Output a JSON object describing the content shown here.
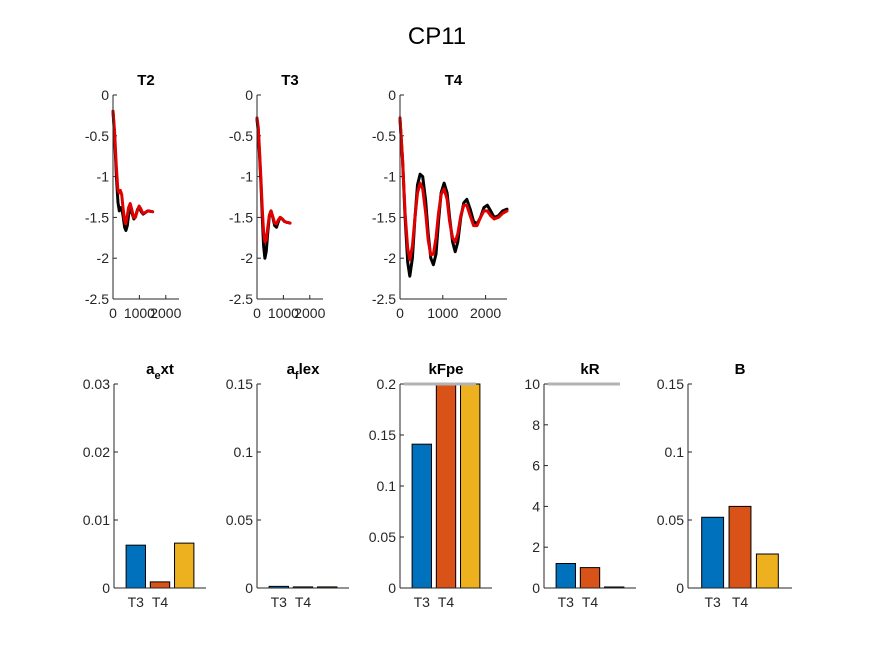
{
  "figure": {
    "title": "CP11"
  },
  "colors": {
    "measured": "#000000",
    "model": "#e00000",
    "bar1": "#0072bd",
    "bar2": "#d95319",
    "bar3": "#edb120",
    "limit": "#b3b3b3"
  },
  "chart_data": [
    {
      "type": "line",
      "title": "T2",
      "xlim": [
        0,
        2500
      ],
      "ylim": [
        -2.5,
        0
      ],
      "xticks": [
        0,
        1000,
        2000
      ],
      "xtick_labels": [
        "0",
        "1000",
        "2000"
      ],
      "yticks": [
        0,
        -0.5,
        -1,
        -1.5,
        -2,
        -2.5
      ],
      "ytick_labels": [
        "0",
        "-0.5",
        "-1",
        "-1.5",
        "-2",
        "-2.5"
      ],
      "series": [
        {
          "values": [
            [
              0,
              -0.2
            ],
            [
              60,
              -0.5
            ],
            [
              130,
              -1.0
            ],
            [
              190,
              -1.32
            ],
            [
              240,
              -1.42
            ],
            [
              290,
              -1.38
            ],
            [
              340,
              -1.4
            ],
            [
              390,
              -1.5
            ],
            [
              440,
              -1.62
            ],
            [
              490,
              -1.66
            ],
            [
              540,
              -1.6
            ],
            [
              600,
              -1.45
            ],
            [
              660,
              -1.38
            ],
            [
              720,
              -1.45
            ],
            [
              790,
              -1.52
            ],
            [
              860,
              -1.48
            ],
            [
              930,
              -1.4
            ],
            [
              1000,
              -1.38
            ],
            [
              1070,
              -1.43
            ],
            [
              1140,
              -1.46
            ],
            [
              1230,
              -1.44
            ],
            [
              1320,
              -1.42
            ],
            [
              1500,
              -1.43
            ]
          ]
        },
        {
          "values": [
            [
              0,
              -0.2
            ],
            [
              60,
              -0.45
            ],
            [
              120,
              -0.85
            ],
            [
              180,
              -1.15
            ],
            [
              230,
              -1.2
            ],
            [
              280,
              -1.17
            ],
            [
              330,
              -1.22
            ],
            [
              380,
              -1.38
            ],
            [
              430,
              -1.52
            ],
            [
              480,
              -1.58
            ],
            [
              530,
              -1.5
            ],
            [
              590,
              -1.38
            ],
            [
              650,
              -1.33
            ],
            [
              710,
              -1.4
            ],
            [
              780,
              -1.5
            ],
            [
              850,
              -1.5
            ],
            [
              920,
              -1.42
            ],
            [
              990,
              -1.36
            ],
            [
              1060,
              -1.4
            ],
            [
              1130,
              -1.45
            ],
            [
              1220,
              -1.44
            ],
            [
              1320,
              -1.42
            ],
            [
              1500,
              -1.43
            ]
          ]
        }
      ]
    },
    {
      "type": "line",
      "title": "T3",
      "xlim": [
        0,
        2500
      ],
      "ylim": [
        -2.5,
        0
      ],
      "xticks": [
        0,
        1000,
        2000
      ],
      "xtick_labels": [
        "0",
        "1000",
        "2000"
      ],
      "yticks": [
        0,
        -0.5,
        -1,
        -1.5,
        -2,
        -2.5
      ],
      "ytick_labels": [
        "0",
        "-0.5",
        "-1",
        "-1.5",
        "-2",
        "-2.5"
      ],
      "series": [
        {
          "values": [
            [
              0,
              -0.3
            ],
            [
              50,
              -0.45
            ],
            [
              100,
              -0.75
            ],
            [
              150,
              -1.1
            ],
            [
              200,
              -1.5
            ],
            [
              250,
              -1.85
            ],
            [
              300,
              -2.0
            ],
            [
              350,
              -1.92
            ],
            [
              410,
              -1.68
            ],
            [
              470,
              -1.48
            ],
            [
              530,
              -1.42
            ],
            [
              600,
              -1.5
            ],
            [
              670,
              -1.6
            ],
            [
              740,
              -1.62
            ],
            [
              810,
              -1.55
            ],
            [
              880,
              -1.5
            ],
            [
              960,
              -1.52
            ],
            [
              1040,
              -1.55
            ],
            [
              1130,
              -1.56
            ],
            [
              1250,
              -1.57
            ]
          ]
        },
        {
          "values": [
            [
              0,
              -0.28
            ],
            [
              50,
              -0.4
            ],
            [
              100,
              -0.7
            ],
            [
              150,
              -1.05
            ],
            [
              200,
              -1.4
            ],
            [
              250,
              -1.68
            ],
            [
              300,
              -1.8
            ],
            [
              350,
              -1.78
            ],
            [
              410,
              -1.62
            ],
            [
              470,
              -1.47
            ],
            [
              530,
              -1.42
            ],
            [
              600,
              -1.49
            ],
            [
              670,
              -1.57
            ],
            [
              740,
              -1.58
            ],
            [
              810,
              -1.53
            ],
            [
              880,
              -1.5
            ],
            [
              960,
              -1.52
            ],
            [
              1040,
              -1.55
            ],
            [
              1130,
              -1.56
            ],
            [
              1250,
              -1.57
            ]
          ]
        }
      ]
    },
    {
      "type": "line",
      "title": "T4",
      "xlim": [
        0,
        2500
      ],
      "ylim": [
        -2.5,
        0
      ],
      "xticks": [
        0,
        1000,
        2000
      ],
      "xtick_labels": [
        "0",
        "1000",
        "2000"
      ],
      "yticks": [
        0,
        -0.5,
        -1,
        -1.5,
        -2,
        -2.5
      ],
      "ytick_labels": [
        "0",
        "-0.5",
        "-1",
        "-1.5",
        "-2",
        "-2.5"
      ],
      "series": [
        {
          "values": [
            [
              0,
              -0.3
            ],
            [
              60,
              -0.8
            ],
            [
              120,
              -1.5
            ],
            [
              180,
              -2.05
            ],
            [
              230,
              -2.22
            ],
            [
              290,
              -2.0
            ],
            [
              350,
              -1.5
            ],
            [
              410,
              -1.1
            ],
            [
              470,
              -0.97
            ],
            [
              530,
              -1.0
            ],
            [
              600,
              -1.3
            ],
            [
              660,
              -1.7
            ],
            [
              720,
              -2.0
            ],
            [
              780,
              -2.08
            ],
            [
              840,
              -1.95
            ],
            [
              900,
              -1.55
            ],
            [
              960,
              -1.2
            ],
            [
              1030,
              -1.08
            ],
            [
              1100,
              -1.2
            ],
            [
              1160,
              -1.5
            ],
            [
              1230,
              -1.8
            ],
            [
              1290,
              -1.92
            ],
            [
              1350,
              -1.8
            ],
            [
              1420,
              -1.5
            ],
            [
              1490,
              -1.32
            ],
            [
              1560,
              -1.28
            ],
            [
              1640,
              -1.4
            ],
            [
              1720,
              -1.55
            ],
            [
              1800,
              -1.58
            ],
            [
              1880,
              -1.5
            ],
            [
              1960,
              -1.38
            ],
            [
              2040,
              -1.35
            ],
            [
              2120,
              -1.42
            ],
            [
              2200,
              -1.5
            ],
            [
              2300,
              -1.48
            ],
            [
              2400,
              -1.42
            ],
            [
              2500,
              -1.4
            ]
          ]
        },
        {
          "values": [
            [
              0,
              -0.28
            ],
            [
              60,
              -0.8
            ],
            [
              120,
              -1.45
            ],
            [
              180,
              -1.88
            ],
            [
              230,
              -2.02
            ],
            [
              290,
              -1.85
            ],
            [
              350,
              -1.5
            ],
            [
              410,
              -1.2
            ],
            [
              470,
              -1.08
            ],
            [
              530,
              -1.15
            ],
            [
              600,
              -1.45
            ],
            [
              660,
              -1.78
            ],
            [
              720,
              -1.96
            ],
            [
              780,
              -1.95
            ],
            [
              840,
              -1.75
            ],
            [
              900,
              -1.45
            ],
            [
              960,
              -1.22
            ],
            [
              1030,
              -1.15
            ],
            [
              1100,
              -1.28
            ],
            [
              1160,
              -1.55
            ],
            [
              1230,
              -1.75
            ],
            [
              1290,
              -1.8
            ],
            [
              1350,
              -1.7
            ],
            [
              1420,
              -1.48
            ],
            [
              1490,
              -1.35
            ],
            [
              1560,
              -1.35
            ],
            [
              1640,
              -1.48
            ],
            [
              1720,
              -1.6
            ],
            [
              1800,
              -1.6
            ],
            [
              1880,
              -1.5
            ],
            [
              1960,
              -1.42
            ],
            [
              2040,
              -1.42
            ],
            [
              2120,
              -1.48
            ],
            [
              2200,
              -1.52
            ],
            [
              2300,
              -1.5
            ],
            [
              2400,
              -1.45
            ],
            [
              2500,
              -1.42
            ]
          ]
        }
      ]
    },
    {
      "type": "bar",
      "title": "a",
      "title_sub": "e",
      "title_rest": "xt",
      "categories": [
        "T3",
        "T4",
        ""
      ],
      "xtick_labels": [
        "T3",
        "T4"
      ],
      "values": [
        0.0063,
        0.0009,
        0.0066
      ],
      "ylim": [
        0,
        0.03
      ],
      "yticks": [
        0,
        0.01,
        0.02,
        0.03
      ],
      "ytick_labels": [
        "0",
        "0.01",
        "0.02",
        "0.03"
      ]
    },
    {
      "type": "bar",
      "title": "a",
      "title_sub": "f",
      "title_rest": "lex",
      "categories": [
        "T3",
        "T4",
        ""
      ],
      "xtick_labels": [
        "T3",
        "T4"
      ],
      "values": [
        0.0012,
        0.0008,
        0.0008
      ],
      "ylim": [
        0,
        0.15
      ],
      "yticks": [
        0,
        0.05,
        0.1,
        0.15
      ],
      "ytick_labels": [
        "0",
        "0.05",
        "0.1",
        "0.15"
      ]
    },
    {
      "type": "bar",
      "title": "kFpe",
      "categories": [
        "T3",
        "T4",
        ""
      ],
      "xtick_labels": [
        "T3",
        "T4"
      ],
      "values": [
        0.141,
        0.2,
        0.2
      ],
      "ylim": [
        0,
        0.2
      ],
      "limit_line": 0.2,
      "yticks": [
        0,
        0.05,
        0.1,
        0.15,
        0.2
      ],
      "ytick_labels": [
        "0",
        "0.05",
        "0.1",
        "0.15",
        "0.2"
      ]
    },
    {
      "type": "bar",
      "title": "kR",
      "categories": [
        "T3",
        "T4",
        ""
      ],
      "xtick_labels": [
        "T3",
        "T4"
      ],
      "values": [
        1.2,
        1.0,
        0.05
      ],
      "ylim": [
        0,
        10
      ],
      "limit_line": 10,
      "yticks": [
        0,
        2,
        4,
        6,
        8,
        10
      ],
      "ytick_labels": [
        "0",
        "2",
        "4",
        "6",
        "8",
        "10"
      ]
    },
    {
      "type": "bar",
      "title": "B",
      "categories": [
        "T3",
        "T4",
        ""
      ],
      "xtick_labels": [
        "T3",
        "T4"
      ],
      "values": [
        0.052,
        0.06,
        0.025
      ],
      "ylim": [
        0,
        0.15
      ],
      "yticks": [
        0,
        0.05,
        0.1,
        0.15
      ],
      "ytick_labels": [
        "0",
        "0.05",
        "0.1",
        "0.15"
      ]
    }
  ]
}
